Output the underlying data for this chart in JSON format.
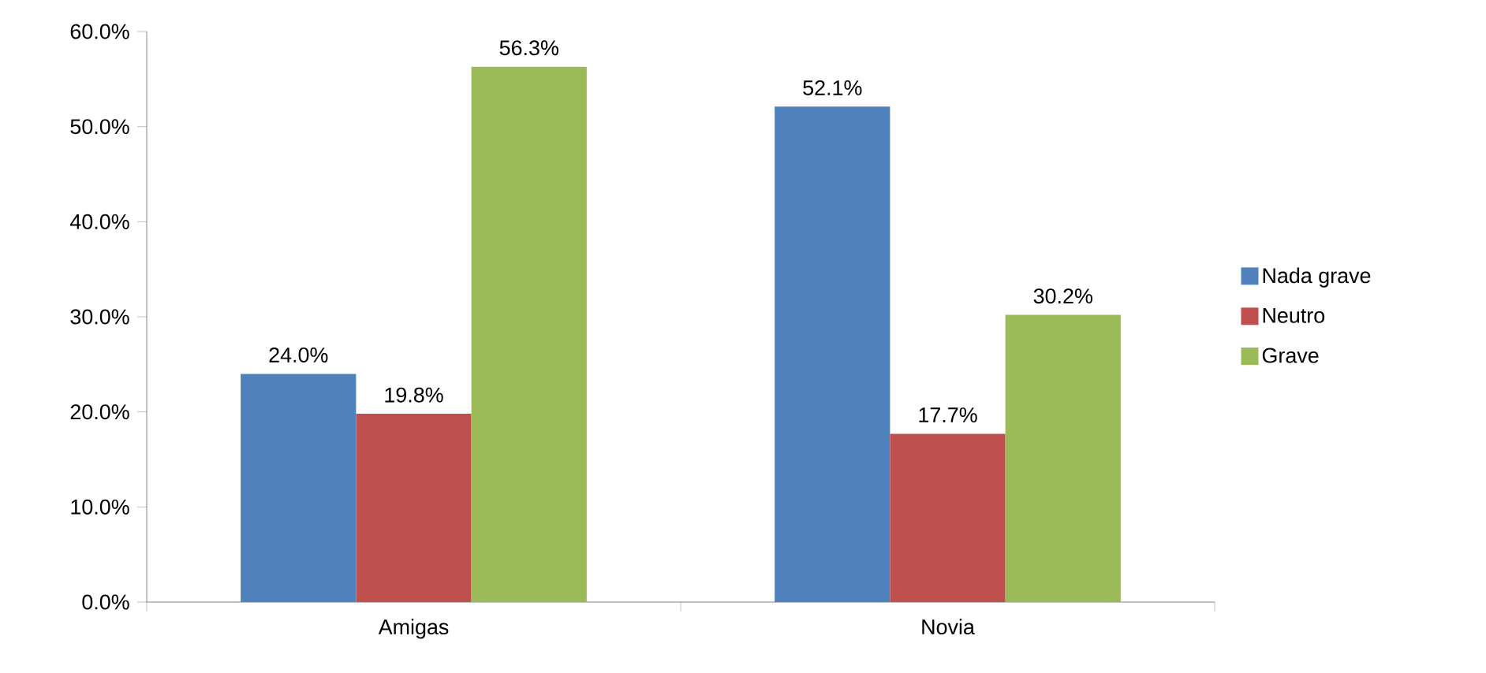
{
  "chart_data": {
    "type": "bar",
    "categories": [
      "Amigas",
      "Novia"
    ],
    "series": [
      {
        "name": "Nada grave",
        "color": "#4f81bd",
        "values": [
          24.0,
          52.1
        ],
        "value_labels": [
          "24.0%",
          "52.1%"
        ]
      },
      {
        "name": "Neutro",
        "color": "#c0504d",
        "values": [
          19.8,
          17.7
        ],
        "value_labels": [
          "19.8%",
          "17.7%"
        ]
      },
      {
        "name": "Grave",
        "color": "#9bbb59",
        "values": [
          56.3,
          30.2
        ],
        "value_labels": [
          "56.3%",
          "30.2%"
        ]
      }
    ],
    "ylim": [
      0,
      60
    ],
    "yticks": [
      {
        "value": 0,
        "label": "0.0%"
      },
      {
        "value": 10,
        "label": "10.0%"
      },
      {
        "value": 20,
        "label": "20.0%"
      },
      {
        "value": 30,
        "label": "30.0%"
      },
      {
        "value": 40,
        "label": "40.0%"
      },
      {
        "value": 50,
        "label": "50.0%"
      },
      {
        "value": 60,
        "label": "60.0%"
      }
    ],
    "grid": false,
    "legend": "right"
  }
}
